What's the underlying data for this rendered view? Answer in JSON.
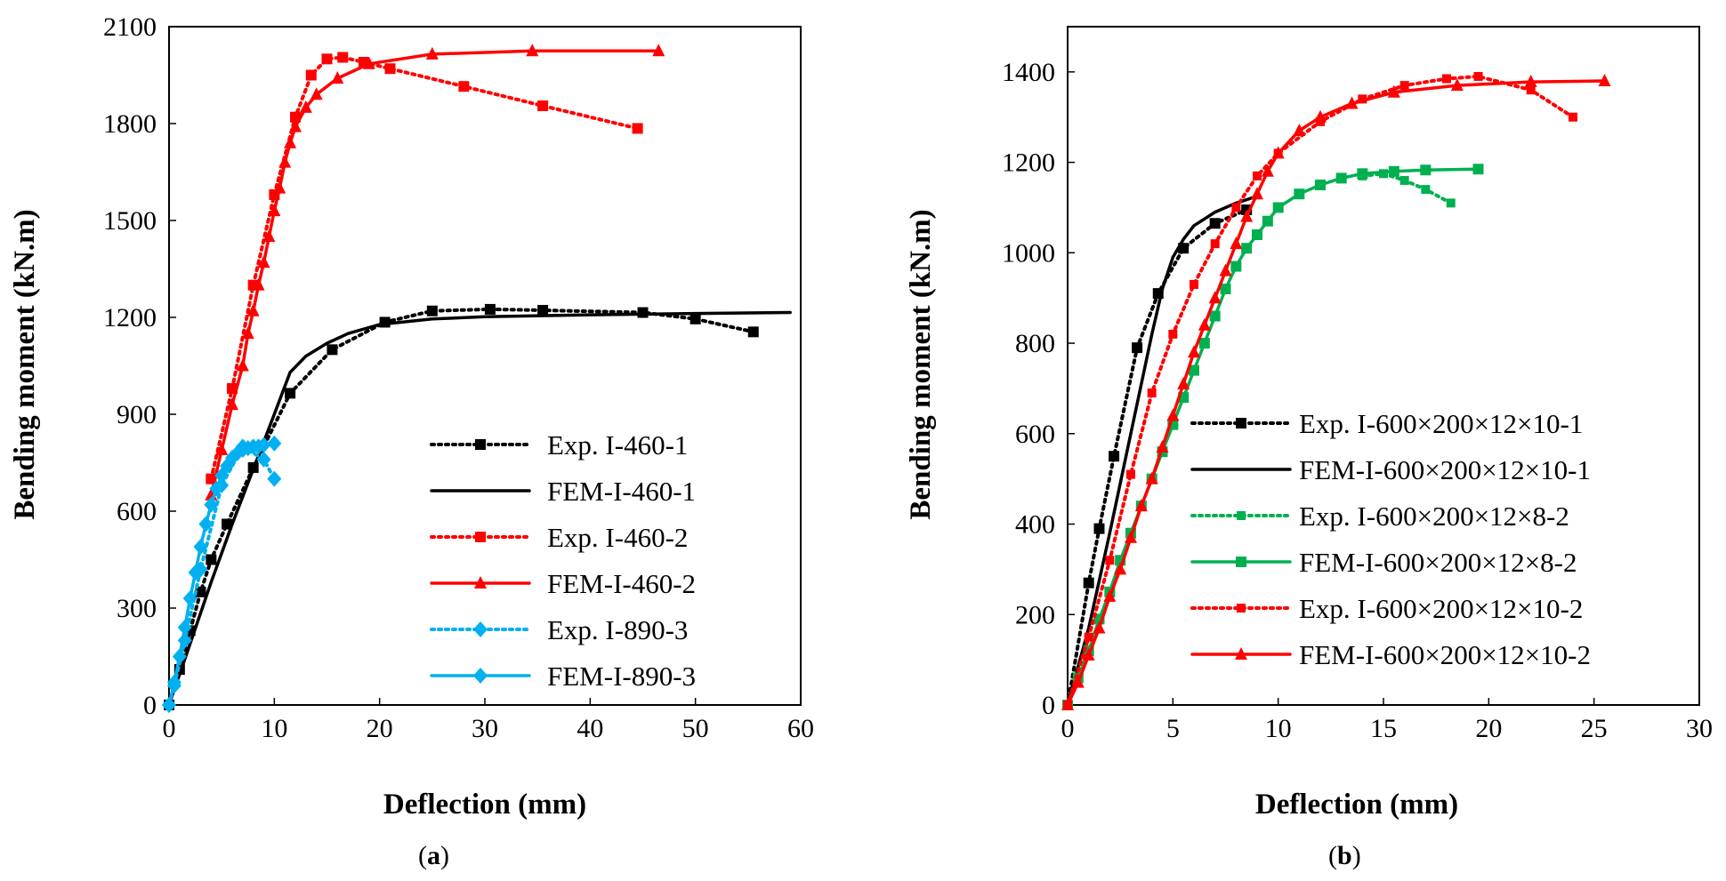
{
  "chart_data": [
    {
      "type": "line",
      "panel_label": "a",
      "xlabel": "Deflection (mm)",
      "ylabel": "Bending moment (kN.m)",
      "xlim": [
        0,
        60
      ],
      "ylim": [
        0,
        2100
      ],
      "xticks": [
        "0",
        "10",
        "20",
        "30",
        "40",
        "50",
        "60"
      ],
      "yticks": [
        "0",
        "300",
        "600",
        "900",
        "1200",
        "1500",
        "1800",
        "2100"
      ],
      "grid": false,
      "legend_position": "bottom-right",
      "series": [
        {
          "name": "Exp. I-460-1",
          "color": "#000000",
          "dash": "dotted",
          "marker": "square",
          "markers_every": 1,
          "x": [
            0,
            1,
            2,
            3,
            4,
            5.5,
            8,
            11.5,
            15.5,
            20.5,
            25,
            30.5,
            35.5,
            45,
            50,
            55.5
          ],
          "y": [
            0,
            110,
            230,
            350,
            450,
            560,
            735,
            965,
            1100,
            1185,
            1220,
            1225,
            1222,
            1215,
            1195,
            1155
          ]
        },
        {
          "name": "FEM-I-460-1",
          "color": "#000000",
          "dash": "solid",
          "marker": "none",
          "markers_every": 0,
          "x": [
            0,
            2,
            4,
            6,
            8,
            10,
            11.5,
            13,
            15,
            17,
            20,
            25,
            30,
            40,
            50,
            59
          ],
          "y": [
            0,
            190,
            380,
            560,
            730,
            900,
            1030,
            1080,
            1120,
            1150,
            1178,
            1195,
            1202,
            1208,
            1212,
            1215
          ]
        },
        {
          "name": "Exp. I-460-2",
          "color": "#FF0000",
          "dash": "dotted",
          "marker": "square",
          "markers_every": 1,
          "x": [
            4,
            6,
            8,
            10,
            12,
            13.5,
            15,
            16.5,
            18.5,
            21,
            28,
            35.5,
            44.5
          ],
          "y": [
            700,
            980,
            1300,
            1580,
            1820,
            1950,
            2000,
            2005,
            1990,
            1970,
            1915,
            1855,
            1785
          ]
        },
        {
          "name": "FEM-I-460-2",
          "color": "#FF0000",
          "dash": "solid",
          "marker": "triangle",
          "markers_every": 1,
          "x": [
            4,
            5,
            6,
            7,
            7.5,
            8,
            8.5,
            9,
            9.5,
            10,
            10.5,
            11,
            11.5,
            12,
            13,
            14,
            16,
            19,
            25,
            34.5,
            46.5
          ],
          "y": [
            650,
            790,
            930,
            1050,
            1150,
            1220,
            1300,
            1370,
            1450,
            1530,
            1600,
            1680,
            1740,
            1790,
            1850,
            1890,
            1940,
            1985,
            2015,
            2025,
            2025
          ]
        },
        {
          "name": "Exp. I-890-3",
          "color": "#00B0F0",
          "dash": "dotted",
          "marker": "diamond",
          "markers_every": 1,
          "x": [
            0,
            0.5,
            1.5,
            3,
            5,
            7,
            9,
            10
          ],
          "y": [
            0,
            60,
            200,
            420,
            680,
            800,
            760,
            700
          ]
        },
        {
          "name": "FEM-I-890-3",
          "color": "#00B0F0",
          "dash": "solid",
          "marker": "diamond",
          "markers_every": 1,
          "x": [
            0,
            0.5,
            1,
            1.5,
            2,
            2.5,
            3,
            3.5,
            4,
            4.5,
            5,
            5.5,
            6,
            6.5,
            7,
            7.5,
            8,
            8.5,
            9,
            10
          ],
          "y": [
            0,
            70,
            150,
            240,
            330,
            410,
            490,
            560,
            620,
            670,
            710,
            740,
            765,
            780,
            790,
            795,
            800,
            800,
            805,
            810
          ]
        }
      ]
    },
    {
      "type": "line",
      "panel_label": "b",
      "xlabel": "Deflection (mm)",
      "ylabel": "Bending moment (kN.m)",
      "xlim": [
        0,
        30
      ],
      "ylim": [
        0,
        1500
      ],
      "xticks": [
        "0",
        "5",
        "10",
        "15",
        "20",
        "25",
        "30"
      ],
      "yticks": [
        "0",
        "200",
        "400",
        "600",
        "800",
        "1000",
        "1200",
        "1400"
      ],
      "grid": false,
      "legend_position": "bottom-right",
      "series": [
        {
          "name": "Exp. I-600×200×12×10-1",
          "color": "#000000",
          "dash": "dotted",
          "marker": "square",
          "markers_every": 1,
          "x": [
            0,
            1,
            1.5,
            2.2,
            3.3,
            4.3,
            5.5,
            7,
            8.5
          ],
          "y": [
            0,
            270,
            390,
            550,
            790,
            910,
            1010,
            1065,
            1095
          ]
        },
        {
          "name": "FEM-I-600×200×12×10-1",
          "color": "#000000",
          "dash": "solid",
          "marker": "none",
          "markers_every": 0,
          "x": [
            0,
            1,
            2,
            3,
            4,
            4.5,
            5,
            5.5,
            6,
            7,
            8,
            9
          ],
          "y": [
            0,
            170,
            380,
            600,
            820,
            920,
            990,
            1030,
            1060,
            1090,
            1110,
            1125
          ]
        },
        {
          "name": "Exp. I-600×200×12×8-2",
          "color": "#00B050",
          "dash": "dotted",
          "marker": "square-small",
          "markers_every": 1,
          "x": [
            14,
            15,
            16,
            17,
            18.2
          ],
          "y": [
            1170,
            1175,
            1160,
            1140,
            1110
          ]
        },
        {
          "name": "FEM-I-600×200×12×8-2",
          "color": "#00B050",
          "dash": "solid",
          "marker": "square",
          "markers_every": 1,
          "x": [
            0,
            0.5,
            1,
            1.5,
            2,
            2.5,
            3,
            3.5,
            4,
            4.5,
            5,
            5.5,
            6,
            6.5,
            7,
            7.5,
            8,
            8.5,
            9,
            9.5,
            10,
            11,
            12,
            13,
            14,
            15.5,
            17,
            19.5
          ],
          "y": [
            0,
            60,
            120,
            190,
            250,
            320,
            380,
            440,
            500,
            560,
            620,
            680,
            740,
            800,
            860,
            920,
            970,
            1010,
            1040,
            1070,
            1100,
            1130,
            1150,
            1165,
            1175,
            1180,
            1183,
            1185
          ]
        },
        {
          "name": "Exp. I-600×200×12×10-2",
          "color": "#FF0000",
          "dash": "dotted",
          "marker": "square-small",
          "markers_every": 1,
          "x": [
            0,
            1,
            2,
            3,
            4,
            5,
            6,
            7,
            8,
            9,
            10,
            12,
            14,
            16,
            18,
            19.5,
            22,
            24
          ],
          "y": [
            0,
            150,
            320,
            510,
            690,
            820,
            930,
            1020,
            1100,
            1170,
            1220,
            1290,
            1340,
            1370,
            1385,
            1390,
            1360,
            1300
          ]
        },
        {
          "name": "FEM-I-600×200×12×10-2",
          "color": "#FF0000",
          "dash": "solid",
          "marker": "triangle",
          "markers_every": 1,
          "x": [
            0,
            0.5,
            1,
            1.5,
            2,
            2.5,
            3,
            3.5,
            4,
            4.5,
            5,
            5.5,
            6,
            6.5,
            7,
            7.5,
            8,
            8.5,
            9,
            9.5,
            10,
            11,
            12,
            13.5,
            15.5,
            18.5,
            22,
            25.5
          ],
          "y": [
            0,
            50,
            110,
            170,
            240,
            300,
            370,
            440,
            500,
            570,
            640,
            710,
            780,
            840,
            900,
            960,
            1020,
            1080,
            1130,
            1180,
            1220,
            1270,
            1300,
            1330,
            1355,
            1370,
            1378,
            1380
          ]
        }
      ]
    }
  ],
  "captions": [
    "(a)",
    "(b)"
  ]
}
